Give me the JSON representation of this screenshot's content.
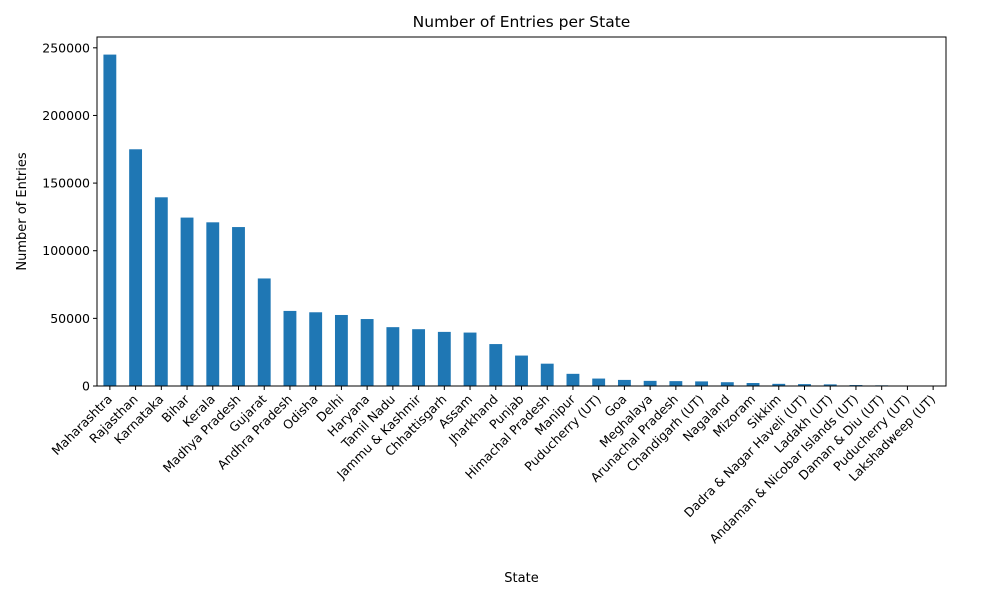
{
  "chart_data": {
    "type": "bar",
    "title": "Number of Entries per State",
    "xlabel": "State",
    "ylabel": "Number of Entries",
    "ylim": [
      0,
      258000
    ],
    "yticks": [
      0,
      50000,
      100000,
      150000,
      200000,
      250000
    ],
    "grid": false,
    "legend": "none",
    "bar_color": "#1f77b4",
    "categories": [
      "Maharashtra",
      "Rajasthan",
      "Karnataka",
      "Bihar",
      "Kerala",
      "Madhya Pradesh",
      "Gujarat",
      "Andhra Pradesh",
      "Odisha",
      "Delhi",
      "Haryana",
      "Tamil Nadu",
      "Jammu & Kashmir",
      "Chhattisgarh",
      "Assam",
      "Jharkhand",
      "Punjab",
      "Himachal Pradesh",
      "Manipur",
      "Puducherry (UT)",
      "Goa",
      "Meghalaya",
      "Arunachal Pradesh",
      "Chandigarh (UT)",
      "Nagaland",
      "Mizoram",
      "Sikkim",
      "Dadra & Nagar Haveli (UT)",
      "Ladakh (UT)",
      "Andaman & Nicobar Islands (UT)",
      "Daman & Diu (UT)",
      "Puducherry (UT)",
      "Lakshadweep (UT)"
    ],
    "values": [
      245000,
      175000,
      139500,
      124500,
      121000,
      117500,
      79500,
      55500,
      54500,
      52500,
      49500,
      43500,
      42000,
      40000,
      39500,
      31000,
      22500,
      16500,
      9000,
      5500,
      4500,
      3800,
      3600,
      3400,
      2800,
      2200,
      1600,
      1400,
      1200,
      700,
      500,
      300,
      100
    ]
  }
}
